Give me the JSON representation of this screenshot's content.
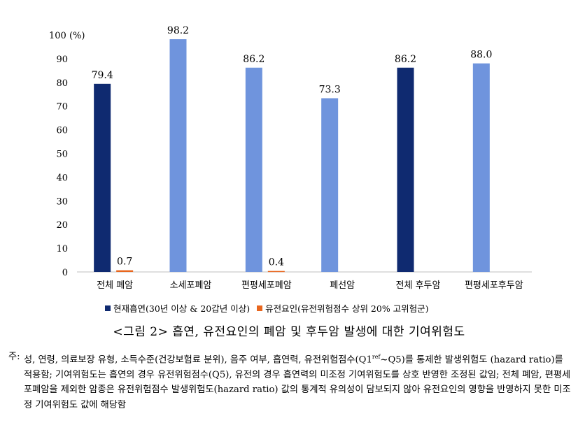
{
  "chart_data": {
    "type": "bar",
    "categories": [
      "전체 폐암",
      "소세포폐암",
      "편평세포폐암",
      "폐선암",
      "전체 후두암",
      "편평세포후두암"
    ],
    "series": [
      {
        "name": "현재흡연(30년 이상 & 20갑년 이상)",
        "values": [
          79.4,
          98.2,
          86.2,
          73.3,
          86.2,
          88.0
        ],
        "colors": [
          "#0f2a70",
          "#6f94dd",
          "#6f94dd",
          "#6f94dd",
          "#0f2a70",
          "#6f94dd"
        ]
      },
      {
        "name": "유전요인(유전위험점수 상위 20% 고위험군)",
        "values": [
          0.7,
          null,
          0.4,
          null,
          null,
          null
        ],
        "colors": [
          "#e8661e",
          "#e8661e",
          "#e8661e",
          "#e8661e",
          "#e8661e",
          "#e8661e"
        ]
      }
    ],
    "value_labels": [
      [
        "79.4",
        "98.2",
        "86.2",
        "73.3",
        "86.2",
        "88.0"
      ],
      [
        "0.7",
        "",
        "0.4",
        "",
        "",
        ""
      ]
    ],
    "yticks": [
      "0",
      "10",
      "20",
      "30",
      "40",
      "50",
      "60",
      "70",
      "80",
      "90",
      "100 (%)"
    ],
    "ylim": [
      0,
      100
    ],
    "grid": false,
    "legend_placement": "bottom"
  },
  "legend": {
    "items": [
      {
        "label": "현재흡연(30년 이상 & 20갑년 이상)",
        "color": "#0f2a70"
      },
      {
        "label": "유전요인(유전위험점수 상위 20% 고위험군)",
        "color": "#e8661e"
      }
    ]
  },
  "caption": "<그림 2> 흡연, 유전요인의 폐암 및 후두암 발생에 대한 기여위험도",
  "note": {
    "prefix": "주:",
    "line1_a": "성, 연령, 의료보장 유형, 소득수준(건강보험료 분위), 음주 여부, 흡연력, 유전위험점수(Q1",
    "line1_sup": "ref",
    "line1_b": "~Q5)를 통제한 발생위험도",
    "rest": "(hazard ratio)를 적용함; 기여위험도는 흡연의 경우 유전위험점수(Q5), 유전의 경우 흡연력의 미조정 기여위험도를 상호 반영한 조정된 값임; 전체 폐암, 편평세포폐암을 제외한 암종은 유전위험점수 발생위험도(hazard ratio) 값의 통계적 유의성이 담보되지 않아 유전요인의 영향을 반영하지 못한 미조정 기여위험도 값에 해당함"
  }
}
